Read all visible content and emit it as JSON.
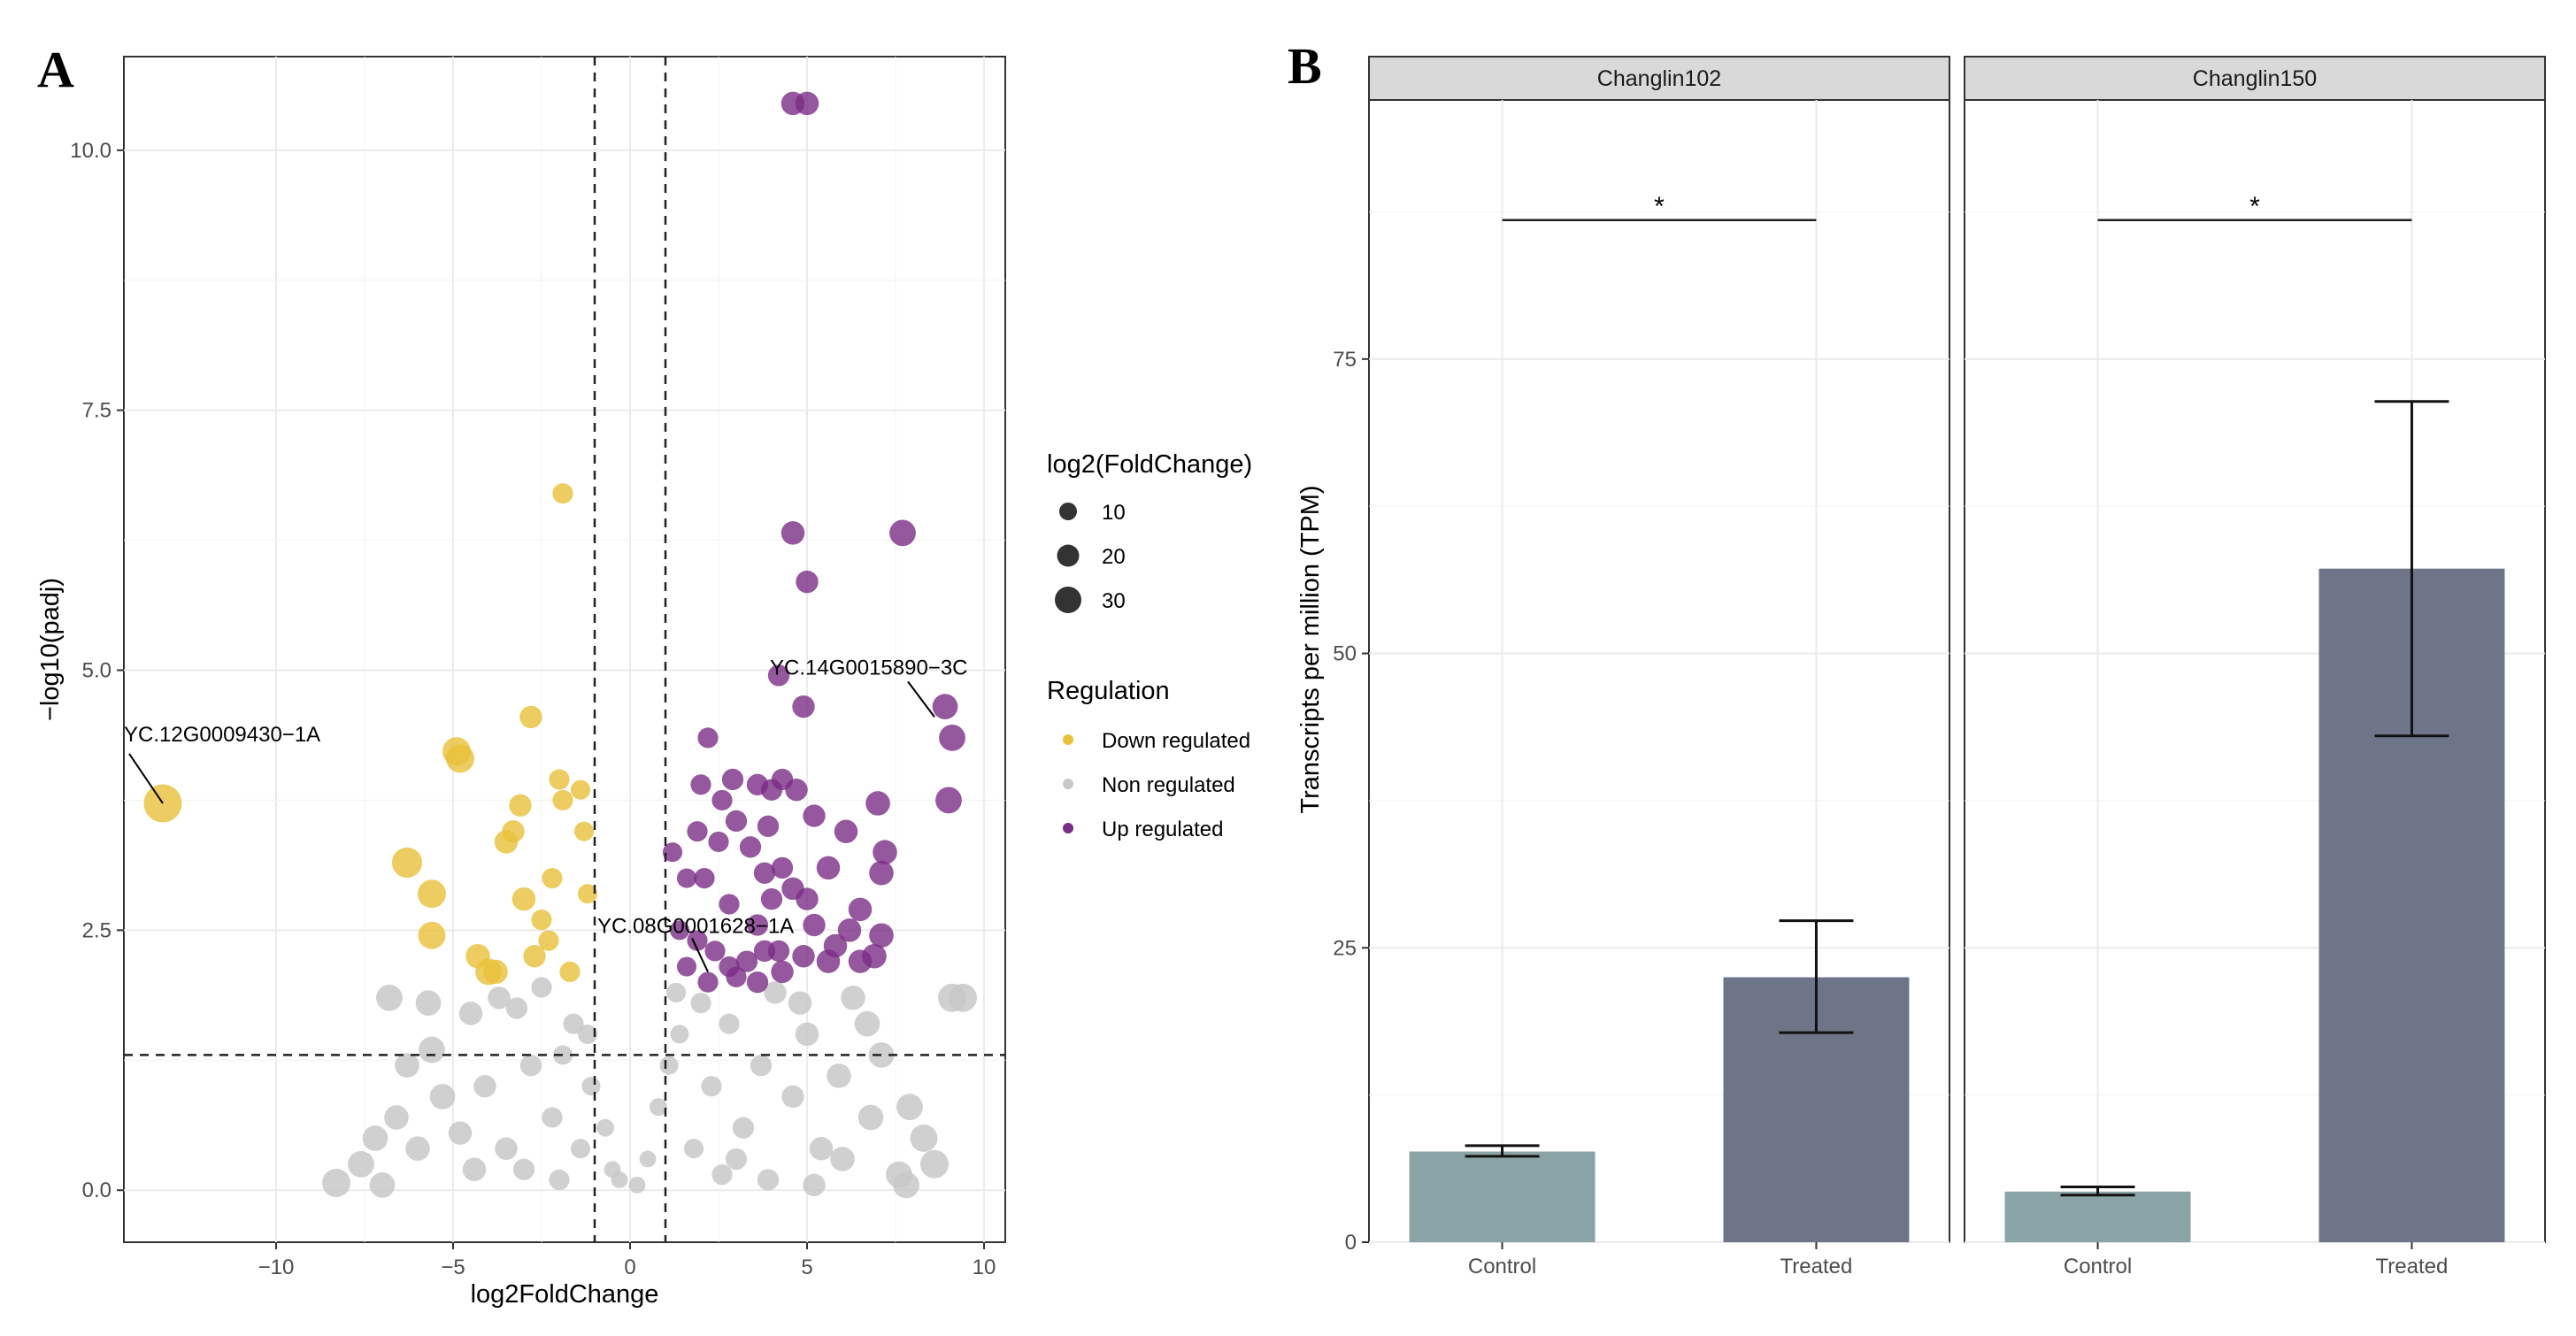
{
  "panels": {
    "a_label": "A",
    "b_label": "B"
  },
  "colors": {
    "down": "#e8c13a",
    "non": "#c8c8c8",
    "up": "#7a2d86",
    "control_bar": "#8aa3a6",
    "treated_bar": "#6e7589",
    "strip_bg": "#d9d9d9",
    "grid": "#ebebeb"
  },
  "chart_data": [
    {
      "type": "scatter",
      "title": "",
      "xlabel": "log2FoldChange",
      "ylabel": "−log10(padj)",
      "xlim": [
        -14.3,
        10.6
      ],
      "ylim": [
        -0.5,
        10.9
      ],
      "x_ticks": [
        -10,
        -5,
        0,
        5,
        10
      ],
      "x_tick_labels": [
        "−10",
        "−5",
        "0",
        "5",
        "10"
      ],
      "y_ticks": [
        0,
        2.5,
        5,
        7.5,
        10
      ],
      "y_tick_labels": [
        "0.0",
        "2.5",
        "5.0",
        "7.5",
        "10.0"
      ],
      "threshold_lines": {
        "x": [
          -1,
          1
        ],
        "y": 1.3
      },
      "legend": {
        "size_title": "log2(FoldChange)",
        "size_entries": [
          {
            "label": "10",
            "value": 10
          },
          {
            "label": "20",
            "value": 20
          },
          {
            "label": "30",
            "value": 30
          }
        ],
        "color_title": "Regulation",
        "color_entries": [
          {
            "label": "Down regulated",
            "key": "down"
          },
          {
            "label": "Non regulated",
            "key": "non"
          },
          {
            "label": "Up regulated",
            "key": "up"
          }
        ]
      },
      "annotations": [
        {
          "label": "YC.12G0009430−1A",
          "x": -13.2,
          "y": 3.72
        },
        {
          "label": "YC.14G0015890−3C",
          "x": 8.6,
          "y": 4.55
        },
        {
          "label": "YC.08G0001628−1A",
          "x": 2.2,
          "y": 2.1
        }
      ],
      "series": [
        {
          "name": "Down regulated",
          "points": [
            [
              -13.2,
              3.72,
              30
            ],
            [
              -6.3,
              3.15,
              22
            ],
            [
              -5.6,
              2.85,
              20
            ],
            [
              -5.6,
              2.45,
              19
            ],
            [
              -4.9,
              4.22,
              20
            ],
            [
              -4.8,
              4.15,
              20
            ],
            [
              -4.3,
              2.25,
              16
            ],
            [
              -4.0,
              2.1,
              18
            ],
            [
              -3.8,
              2.1,
              16
            ],
            [
              -3.5,
              3.35,
              15
            ],
            [
              -3.3,
              3.45,
              14
            ],
            [
              -3.1,
              3.7,
              14
            ],
            [
              -3.0,
              2.8,
              15
            ],
            [
              -2.8,
              4.55,
              14
            ],
            [
              -2.7,
              2.25,
              14
            ],
            [
              -2.5,
              2.6,
              12
            ],
            [
              -2.3,
              2.4,
              12
            ],
            [
              -2.2,
              3.0,
              12
            ],
            [
              -2.0,
              3.95,
              12
            ],
            [
              -1.9,
              3.75,
              12
            ],
            [
              -1.7,
              2.1,
              12
            ],
            [
              -1.9,
              6.7,
              12
            ],
            [
              -1.4,
              3.85,
              11
            ],
            [
              -1.3,
              3.45,
              11
            ],
            [
              -1.2,
              2.85,
              11
            ]
          ]
        },
        {
          "name": "Non regulated",
          "points": [
            [
              -8.3,
              0.07,
              20
            ],
            [
              -7.6,
              0.25,
              18
            ],
            [
              -7.2,
              0.5,
              17
            ],
            [
              -6.6,
              0.7,
              16
            ],
            [
              -6.3,
              1.2,
              16
            ],
            [
              -5.6,
              1.35,
              18
            ],
            [
              -6.8,
              1.85,
              18
            ],
            [
              -5.7,
              1.8,
              17
            ],
            [
              -4.5,
              1.7,
              15
            ],
            [
              -3.7,
              1.85,
              14
            ],
            [
              -3.2,
              1.75,
              13
            ],
            [
              -2.5,
              1.95,
              12
            ],
            [
              -1.6,
              1.6,
              12
            ],
            [
              -1.2,
              1.5,
              11
            ],
            [
              -5.3,
              0.9,
              17
            ],
            [
              -4.8,
              0.55,
              15
            ],
            [
              -4.1,
              1.0,
              14
            ],
            [
              -3.5,
              0.4,
              14
            ],
            [
              -2.8,
              1.2,
              13
            ],
            [
              -2.2,
              0.7,
              12
            ],
            [
              -1.9,
              1.3,
              11
            ],
            [
              -1.4,
              0.4,
              11
            ],
            [
              -1.1,
              1.0,
              10
            ],
            [
              -0.7,
              0.6,
              9
            ],
            [
              -0.5,
              0.2,
              8
            ],
            [
              -0.3,
              0.1,
              8
            ],
            [
              0.2,
              0.05,
              8
            ],
            [
              0.5,
              0.3,
              8
            ],
            [
              0.8,
              0.8,
              9
            ],
            [
              1.1,
              1.2,
              10
            ],
            [
              1.4,
              1.5,
              10
            ],
            [
              1.8,
              0.4,
              11
            ],
            [
              2.3,
              1.0,
              12
            ],
            [
              2.8,
              1.6,
              12
            ],
            [
              3.2,
              0.6,
              13
            ],
            [
              3.7,
              1.2,
              13
            ],
            [
              4.1,
              1.9,
              14
            ],
            [
              4.6,
              0.9,
              14
            ],
            [
              5.0,
              1.5,
              15
            ],
            [
              5.4,
              0.4,
              15
            ],
            [
              5.9,
              1.1,
              16
            ],
            [
              6.3,
              1.85,
              16
            ],
            [
              6.8,
              0.7,
              17
            ],
            [
              7.1,
              1.3,
              17
            ],
            [
              7.6,
              0.15,
              18
            ],
            [
              7.9,
              0.8,
              18
            ],
            [
              8.3,
              0.5,
              19
            ],
            [
              8.6,
              0.25,
              20
            ],
            [
              9.1,
              1.85,
              20
            ],
            [
              9.4,
              1.85,
              20
            ],
            [
              6.0,
              0.3,
              16
            ],
            [
              3.0,
              0.3,
              13
            ],
            [
              2.0,
              1.8,
              12
            ],
            [
              1.3,
              1.9,
              11
            ],
            [
              4.8,
              1.8,
              15
            ],
            [
              -3.0,
              0.2,
              13
            ],
            [
              -4.4,
              0.2,
              15
            ],
            [
              -6.0,
              0.4,
              16
            ],
            [
              -7.0,
              0.05,
              17
            ],
            [
              7.8,
              0.05,
              18
            ],
            [
              6.7,
              1.6,
              17
            ],
            [
              2.6,
              0.15,
              12
            ],
            [
              3.9,
              0.1,
              13
            ],
            [
              5.2,
              0.05,
              14
            ],
            [
              -2.0,
              0.1,
              12
            ]
          ]
        },
        {
          "name": "Up regulated",
          "points": [
            [
              4.6,
              10.45,
              15
            ],
            [
              5.0,
              10.45,
              15
            ],
            [
              7.7,
              6.32,
              18
            ],
            [
              4.6,
              6.32,
              15
            ],
            [
              5.0,
              5.85,
              14
            ],
            [
              4.2,
              4.95,
              13
            ],
            [
              4.9,
              4.65,
              14
            ],
            [
              8.9,
              4.65,
              17
            ],
            [
              9.1,
              4.35,
              18
            ],
            [
              2.2,
              4.35,
              12
            ],
            [
              9.0,
              3.75,
              18
            ],
            [
              7.0,
              3.72,
              16
            ],
            [
              2.0,
              3.9,
              12
            ],
            [
              2.9,
              3.95,
              13
            ],
            [
              3.6,
              3.9,
              13
            ],
            [
              4.0,
              3.85,
              13
            ],
            [
              4.3,
              3.95,
              13
            ],
            [
              4.7,
              3.85,
              14
            ],
            [
              5.2,
              3.6,
              14
            ],
            [
              3.9,
              3.5,
              13
            ],
            [
              3.0,
              3.55,
              13
            ],
            [
              2.6,
              3.75,
              12
            ],
            [
              1.9,
              3.45,
              12
            ],
            [
              2.5,
              3.35,
              12
            ],
            [
              3.4,
              3.3,
              13
            ],
            [
              4.3,
              3.1,
              13
            ],
            [
              6.1,
              3.45,
              15
            ],
            [
              7.1,
              3.05,
              16
            ],
            [
              7.2,
              3.25,
              16
            ],
            [
              5.6,
              3.1,
              15
            ],
            [
              4.6,
              2.9,
              14
            ],
            [
              3.8,
              3.05,
              13
            ],
            [
              4.0,
              2.8,
              13
            ],
            [
              5.0,
              2.8,
              14
            ],
            [
              6.5,
              2.7,
              15
            ],
            [
              1.2,
              3.25,
              11
            ],
            [
              1.6,
              3.0,
              11
            ],
            [
              2.1,
              3.0,
              12
            ],
            [
              2.8,
              2.75,
              12
            ],
            [
              3.6,
              2.55,
              13
            ],
            [
              5.2,
              2.55,
              14
            ],
            [
              7.1,
              2.45,
              16
            ],
            [
              6.9,
              2.25,
              16
            ],
            [
              6.5,
              2.2,
              15
            ],
            [
              5.6,
              2.2,
              15
            ],
            [
              4.9,
              2.25,
              14
            ],
            [
              4.3,
              2.1,
              14
            ],
            [
              3.8,
              2.3,
              13
            ],
            [
              3.3,
              2.2,
              13
            ],
            [
              2.8,
              2.15,
              12
            ],
            [
              2.4,
              2.3,
              12
            ],
            [
              1.9,
              2.4,
              12
            ],
            [
              1.4,
              2.5,
              11
            ],
            [
              1.6,
              2.15,
              11
            ],
            [
              2.2,
              2.0,
              12
            ],
            [
              3.0,
              2.05,
              12
            ],
            [
              3.6,
              2.0,
              13
            ],
            [
              4.2,
              2.3,
              13
            ],
            [
              5.8,
              2.35,
              15
            ],
            [
              6.2,
              2.5,
              15
            ]
          ]
        }
      ]
    },
    {
      "type": "bar",
      "title": "",
      "xlabel": "",
      "ylabel": "Transcripts per million (TPM)",
      "ylim": [
        0,
        97
      ],
      "y_ticks": [
        0,
        25,
        50,
        75
      ],
      "y_tick_labels": [
        "0",
        "25",
        "50",
        "75"
      ],
      "categories": [
        "Control",
        "Treated"
      ],
      "facets": [
        {
          "name": "Changlin102",
          "values": [
            7.7,
            22.5
          ],
          "error_low": [
            7.3,
            17.8
          ],
          "error_high": [
            8.2,
            27.3
          ],
          "significance": {
            "label": "*",
            "y": 86.8
          }
        },
        {
          "name": "Changlin150",
          "values": [
            4.3,
            57.2
          ],
          "error_low": [
            4.0,
            43.0
          ],
          "error_high": [
            4.7,
            71.4
          ],
          "significance": {
            "label": "*",
            "y": 86.8
          }
        }
      ]
    }
  ]
}
